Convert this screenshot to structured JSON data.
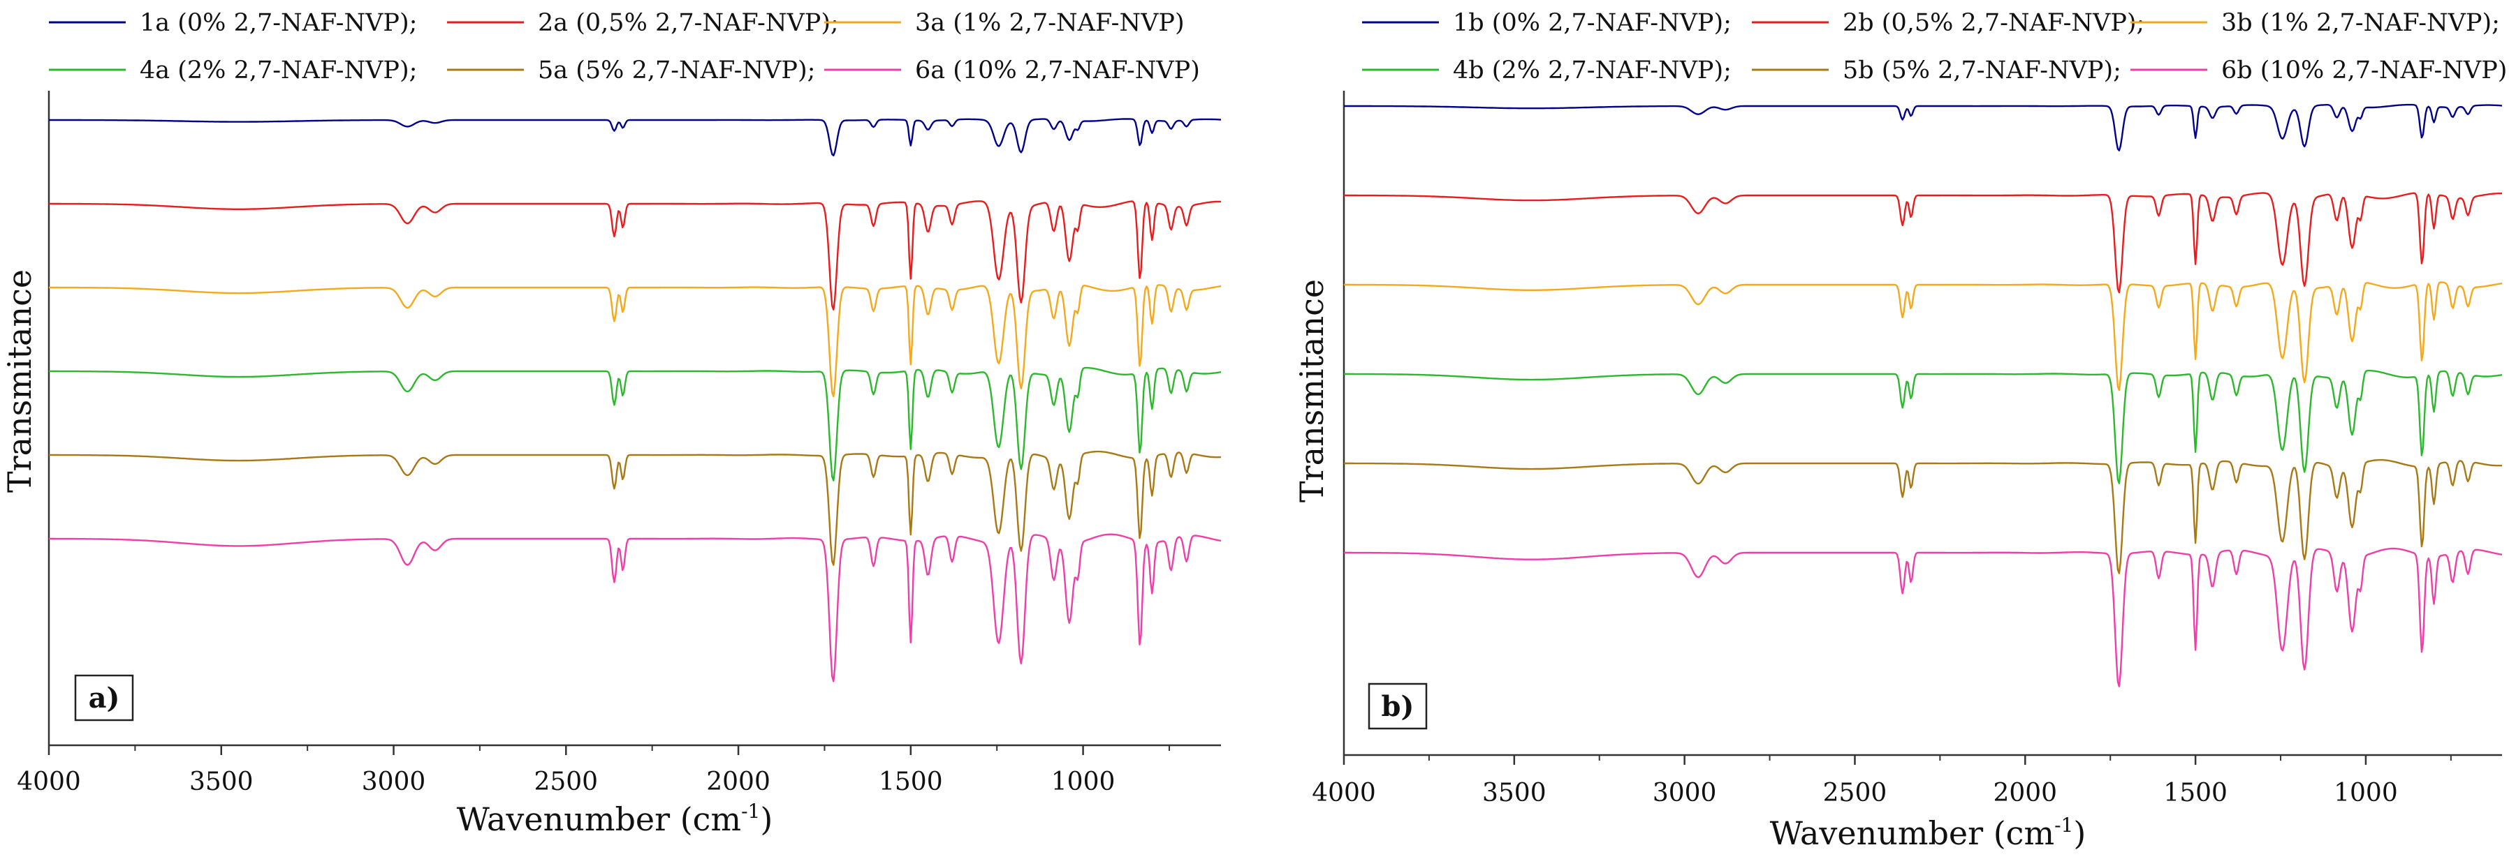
{
  "chart_data": [
    {
      "type": "line",
      "panel_label": "a)",
      "xlabel": "Wavenumber (cm",
      "xlabel_sup": "-1",
      "xlabel_close": ")",
      "ylabel": "Transmitance",
      "xlim": [
        4000,
        600
      ],
      "x_reversed": true,
      "x_ticks": [
        "4000",
        "3500",
        "3000",
        "2500",
        "2000",
        "1500",
        "1000"
      ],
      "x_tick_values": [
        4000,
        3500,
        3000,
        2500,
        2000,
        1500,
        1000
      ],
      "y_tick_labels": false,
      "grid": false,
      "legend": "top",
      "series": [
        {
          "name": "1a (0% 2,7-NAF-NVP);",
          "color": "#00008b",
          "offset": 0.0,
          "scale": 0.2
        },
        {
          "name": "2a (0,5% 2,7-NAF-NVP);",
          "color": "#e81c1c",
          "offset": 0.125,
          "scale": 0.6
        },
        {
          "name": "3a (1% 2,7-NAF-NVP)",
          "color": "#f5a81c",
          "offset": 0.25,
          "scale": 0.62
        },
        {
          "name": "4a (2% 2,7-NAF-NVP);",
          "color": "#2cb82c",
          "offset": 0.375,
          "scale": 0.62
        },
        {
          "name": "5a (5% 2,7-NAF-NVP);",
          "color": "#a87814",
          "offset": 0.5,
          "scale": 0.62
        },
        {
          "name": "6a (10% 2,7-NAF-NVP)",
          "color": "#ee3fa8",
          "offset": 0.625,
          "scale": 0.8
        }
      ]
    },
    {
      "type": "line",
      "panel_label": "b)",
      "xlabel": "Wavenumber (cm",
      "xlabel_sup": "-1",
      "xlabel_close": ")",
      "ylabel": "Transmitance",
      "xlim": [
        4000,
        600
      ],
      "x_reversed": true,
      "x_ticks": [
        "4000",
        "3500",
        "3000",
        "2500",
        "2000",
        "1500",
        "1000"
      ],
      "x_tick_values": [
        4000,
        3500,
        3000,
        2500,
        2000,
        1500,
        1000
      ],
      "y_tick_labels": false,
      "grid": false,
      "legend": "top",
      "series": [
        {
          "name": "1b (0% 2,7-NAF-NVP);",
          "color": "#00008b",
          "offset": 0.0,
          "scale": 0.25
        },
        {
          "name": "2b (0,5% 2,7-NAF-NVP);",
          "color": "#e81c1c",
          "offset": 0.125,
          "scale": 0.55
        },
        {
          "name": "3b (1% 2,7-NAF-NVP);",
          "color": "#f5a81c",
          "offset": 0.25,
          "scale": 0.6
        },
        {
          "name": "4b (2% 2,7-NAF-NVP);",
          "color": "#2cb82c",
          "offset": 0.375,
          "scale": 0.62
        },
        {
          "name": "5b (5% 2,7-NAF-NVP);",
          "color": "#a87814",
          "offset": 0.5,
          "scale": 0.62
        },
        {
          "name": "6b (10% 2,7-NAF-NVP)",
          "color": "#ee3fa8",
          "offset": 0.625,
          "scale": 0.75
        }
      ]
    }
  ]
}
